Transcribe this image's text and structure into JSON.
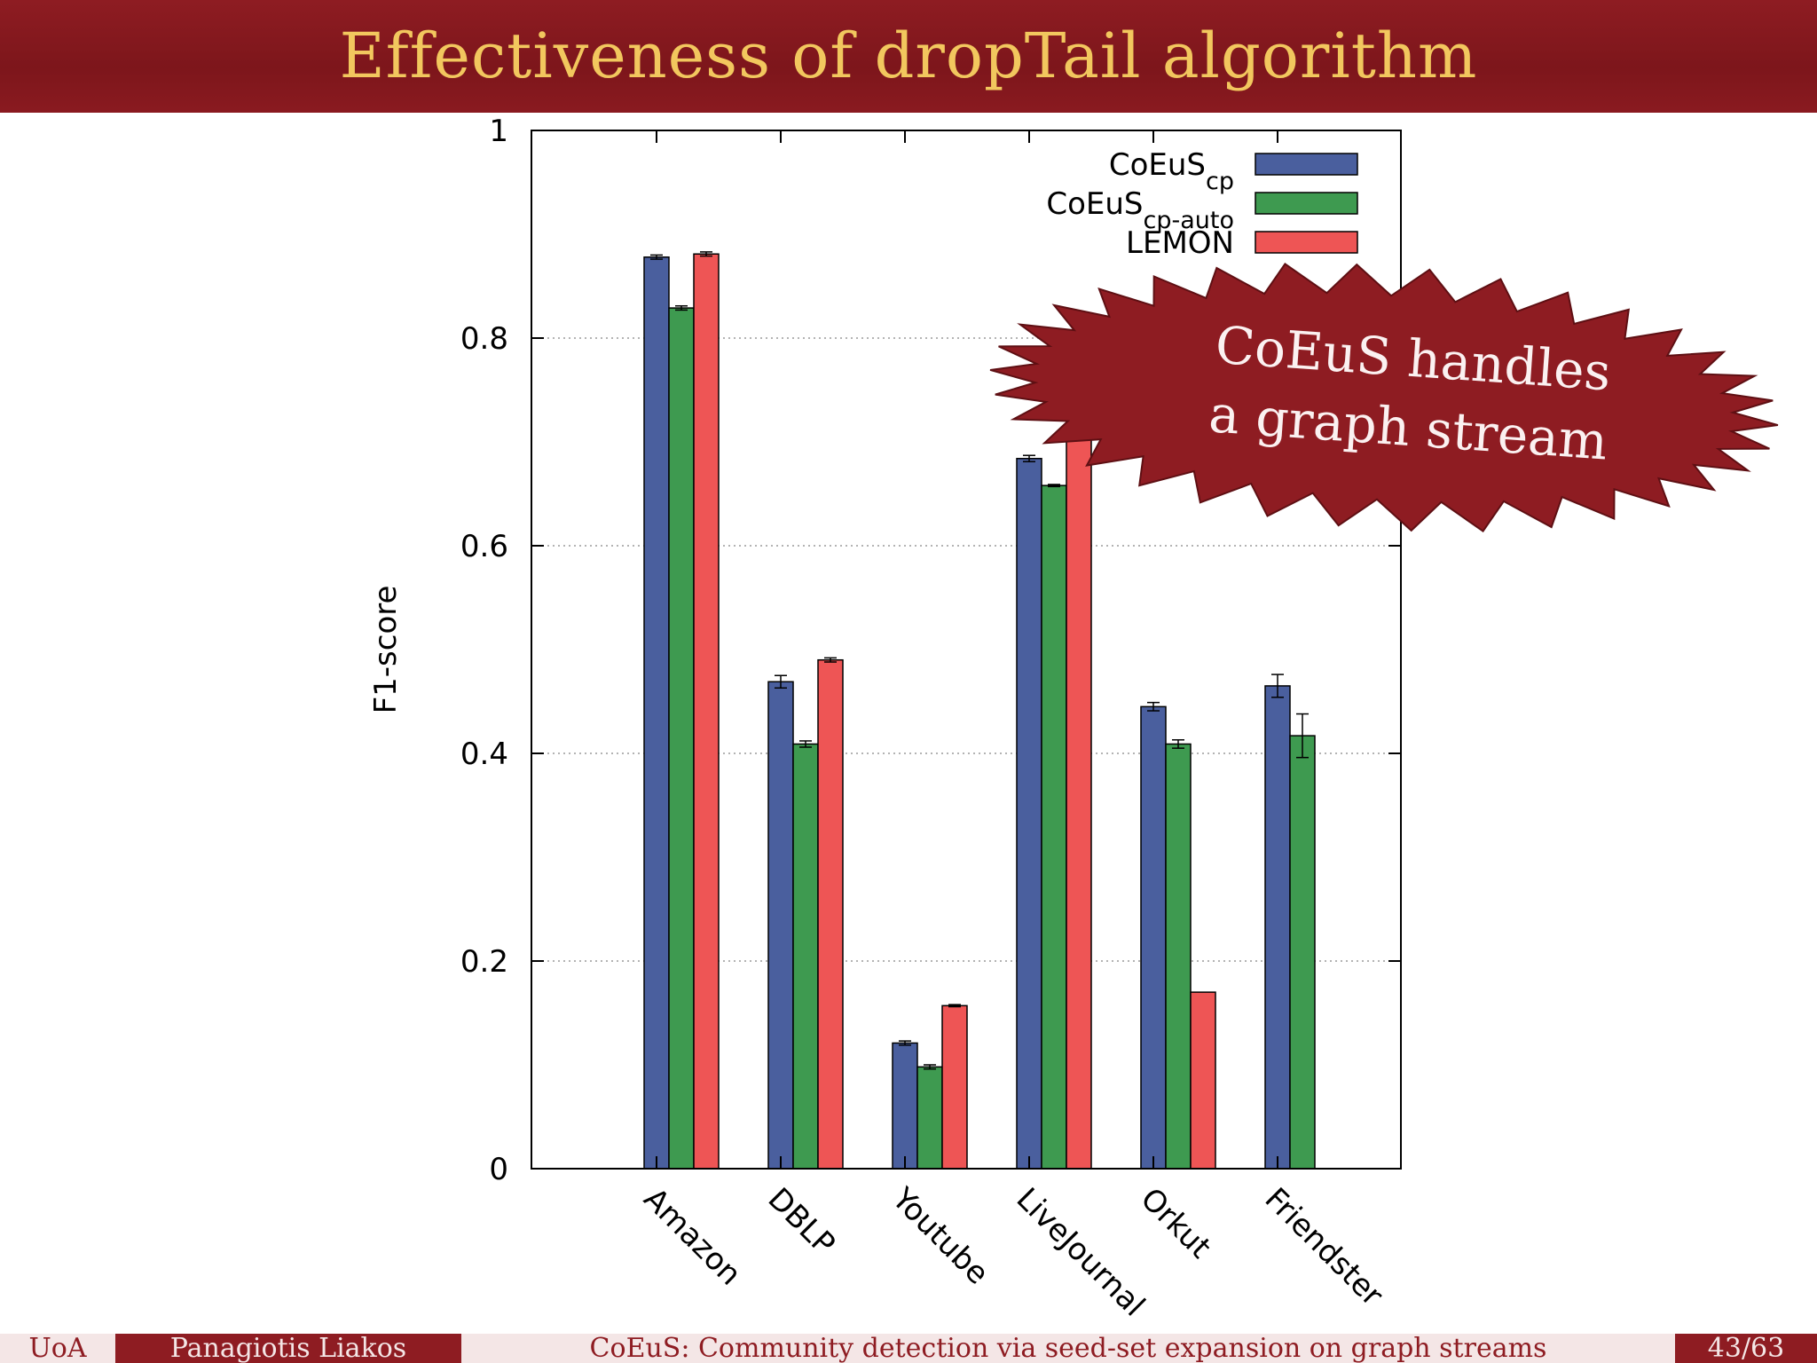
{
  "slide": {
    "title": "Effectiveness of dropTail algorithm",
    "title_color": "#f2c75e",
    "bar_color": "#8e1c22"
  },
  "callout": {
    "line1": "CoEuS handles",
    "line2": "a graph stream",
    "color": "#8e1c22"
  },
  "footer": {
    "institution": "UoA",
    "author": "Panagiotis Liakos",
    "talk": "CoEuS: Community detection via seed-set expansion on graph streams",
    "page": "43/63"
  },
  "chart_data": {
    "type": "bar",
    "ylabel": "F1-score",
    "ylim": [
      0,
      1
    ],
    "yticks": [
      "0",
      "0.2",
      "0.4",
      "0.6",
      "0.8",
      "1"
    ],
    "grid": true,
    "legend_position": "top-right",
    "categories": [
      "Amazon",
      "DBLP",
      "Youtube",
      "LiveJournal",
      "Orkut",
      "Friendster"
    ],
    "series": [
      {
        "name": "CoEuS",
        "subscript": "cp",
        "color": "#4a5f9e",
        "values": [
          0.878,
          0.469,
          0.121,
          0.684,
          0.445,
          0.465
        ],
        "errors": [
          0.002,
          0.006,
          0.002,
          0.003,
          0.004,
          0.011
        ]
      },
      {
        "name": "CoEuS",
        "subscript": "cp-auto",
        "color": "#3e9a50",
        "values": [
          0.829,
          0.409,
          0.098,
          0.658,
          0.409,
          0.417
        ],
        "errors": [
          0.002,
          0.003,
          0.002,
          0.001,
          0.004,
          0.021
        ]
      },
      {
        "name": "LEMON",
        "subscript": "",
        "color": "#ee5555",
        "values": [
          0.881,
          0.49,
          0.157,
          0.77,
          0.17,
          null
        ],
        "errors": [
          0.002,
          0.002,
          0.001,
          0,
          0,
          0
        ]
      }
    ]
  }
}
